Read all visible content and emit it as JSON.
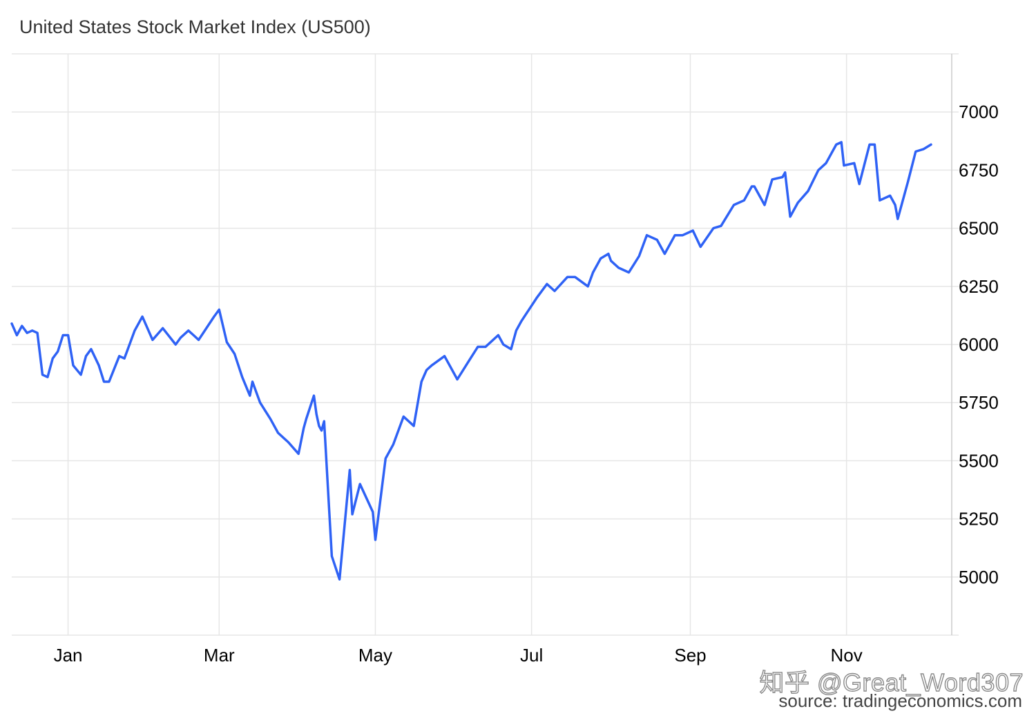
{
  "chart_data": {
    "type": "line",
    "title": "United States Stock Market Index (US500)",
    "xlabel": "",
    "ylabel": "",
    "x_ticks": [
      "Jan",
      "Mar",
      "May",
      "Jul",
      "Sep",
      "Nov"
    ],
    "y_ticks": [
      5000,
      5250,
      5500,
      5750,
      6000,
      6250,
      6500,
      6750,
      7000
    ],
    "ylim": [
      4750,
      7250
    ],
    "grid": true,
    "legend": "none",
    "y_axis_position": "right",
    "colors": {
      "line": "#2f62f5",
      "grid": "#e6e6e6",
      "axis": "#cccccc"
    },
    "series": [
      {
        "x": [
          "2024-12-10",
          "2024-12-12",
          "2024-12-14",
          "2024-12-16",
          "2024-12-18",
          "2024-12-20",
          "2024-12-22",
          "2024-12-24",
          "2024-12-26",
          "2024-12-28",
          "2024-12-30",
          "2025-01-01",
          "2025-01-03",
          "2025-01-06",
          "2025-01-08",
          "2025-01-10",
          "2025-01-13",
          "2025-01-15",
          "2025-01-17",
          "2025-01-21",
          "2025-01-23",
          "2025-01-27",
          "2025-01-30",
          "2025-02-03",
          "2025-02-07",
          "2025-02-12",
          "2025-02-14",
          "2025-02-17",
          "2025-02-19",
          "2025-02-21",
          "2025-02-27",
          "2025-03-01",
          "2025-03-04",
          "2025-03-07",
          "2025-03-10",
          "2025-03-13",
          "2025-03-14",
          "2025-03-17",
          "2025-03-21",
          "2025-03-24",
          "2025-03-28",
          "2025-04-01",
          "2025-04-03",
          "2025-04-04",
          "2025-04-07",
          "2025-04-08",
          "2025-04-09",
          "2025-04-10",
          "2025-04-11",
          "2025-04-14",
          "2025-04-17",
          "2025-04-21",
          "2025-04-22",
          "2025-04-25",
          "2025-04-30",
          "2025-05-01",
          "2025-05-05",
          "2025-05-08",
          "2025-05-09",
          "2025-05-12",
          "2025-05-16",
          "2025-05-19",
          "2025-05-21",
          "2025-05-23",
          "2025-05-28",
          "2025-06-02",
          "2025-06-06",
          "2025-06-10",
          "2025-06-13",
          "2025-06-18",
          "2025-06-20",
          "2025-06-23",
          "2025-06-25",
          "2025-06-27",
          "2025-07-03",
          "2025-07-07",
          "2025-07-10",
          "2025-07-15",
          "2025-07-18",
          "2025-07-23",
          "2025-07-25",
          "2025-07-28",
          "2025-07-31",
          "2025-08-01",
          "2025-08-04",
          "2025-08-08",
          "2025-08-12",
          "2025-08-15",
          "2025-08-19",
          "2025-08-22",
          "2025-08-26",
          "2025-08-29",
          "2025-09-02",
          "2025-09-05",
          "2025-09-10",
          "2025-09-13",
          "2025-09-18",
          "2025-09-22",
          "2025-09-25",
          "2025-09-26",
          "2025-09-30",
          "2025-10-03",
          "2025-10-07",
          "2025-10-08",
          "2025-10-10",
          "2025-10-13",
          "2025-10-17",
          "2025-10-21",
          "2025-10-24",
          "2025-10-28",
          "2025-10-30",
          "2025-10-31",
          "2025-11-04",
          "2025-11-06",
          "2025-11-10",
          "2025-11-12",
          "2025-11-14",
          "2025-11-18",
          "2025-11-20",
          "2025-11-21",
          "2025-11-25",
          "2025-11-28",
          "2025-12-01",
          "2025-12-04"
        ],
        "values": [
          6090,
          6040,
          6080,
          6050,
          6060,
          6050,
          5870,
          5860,
          5940,
          5970,
          6040,
          6040,
          5910,
          5870,
          5950,
          5980,
          5910,
          5840,
          5840,
          5950,
          5940,
          6060,
          6120,
          6020,
          6070,
          6000,
          6030,
          6060,
          6040,
          6020,
          6120,
          6150,
          6010,
          5960,
          5860,
          5780,
          5840,
          5750,
          5680,
          5620,
          5580,
          5530,
          5640,
          5680,
          5780,
          5700,
          5650,
          5630,
          5670,
          5090,
          4990,
          5460,
          5270,
          5400,
          5280,
          5160,
          5510,
          5570,
          5600,
          5690,
          5650,
          5840,
          5890,
          5910,
          5950,
          5850,
          5920,
          5990,
          5990,
          6040,
          6000,
          5980,
          6060,
          6100,
          6200,
          6260,
          6230,
          6290,
          6290,
          6250,
          6310,
          6370,
          6390,
          6360,
          6330,
          6310,
          6380,
          6470,
          6450,
          6390,
          6470,
          6470,
          6490,
          6420,
          6500,
          6510,
          6600,
          6620,
          6680,
          6680,
          6600,
          6710,
          6720,
          6740,
          6550,
          6610,
          6660,
          6750,
          6780,
          6860,
          6870,
          6770,
          6780,
          6690,
          6860,
          6860,
          6620,
          6640,
          6600,
          6540,
          6700,
          6830,
          6840,
          6860
        ]
      }
    ]
  },
  "watermark": "知乎 @Great_Word307",
  "source": "source: tradingeconomics.com"
}
